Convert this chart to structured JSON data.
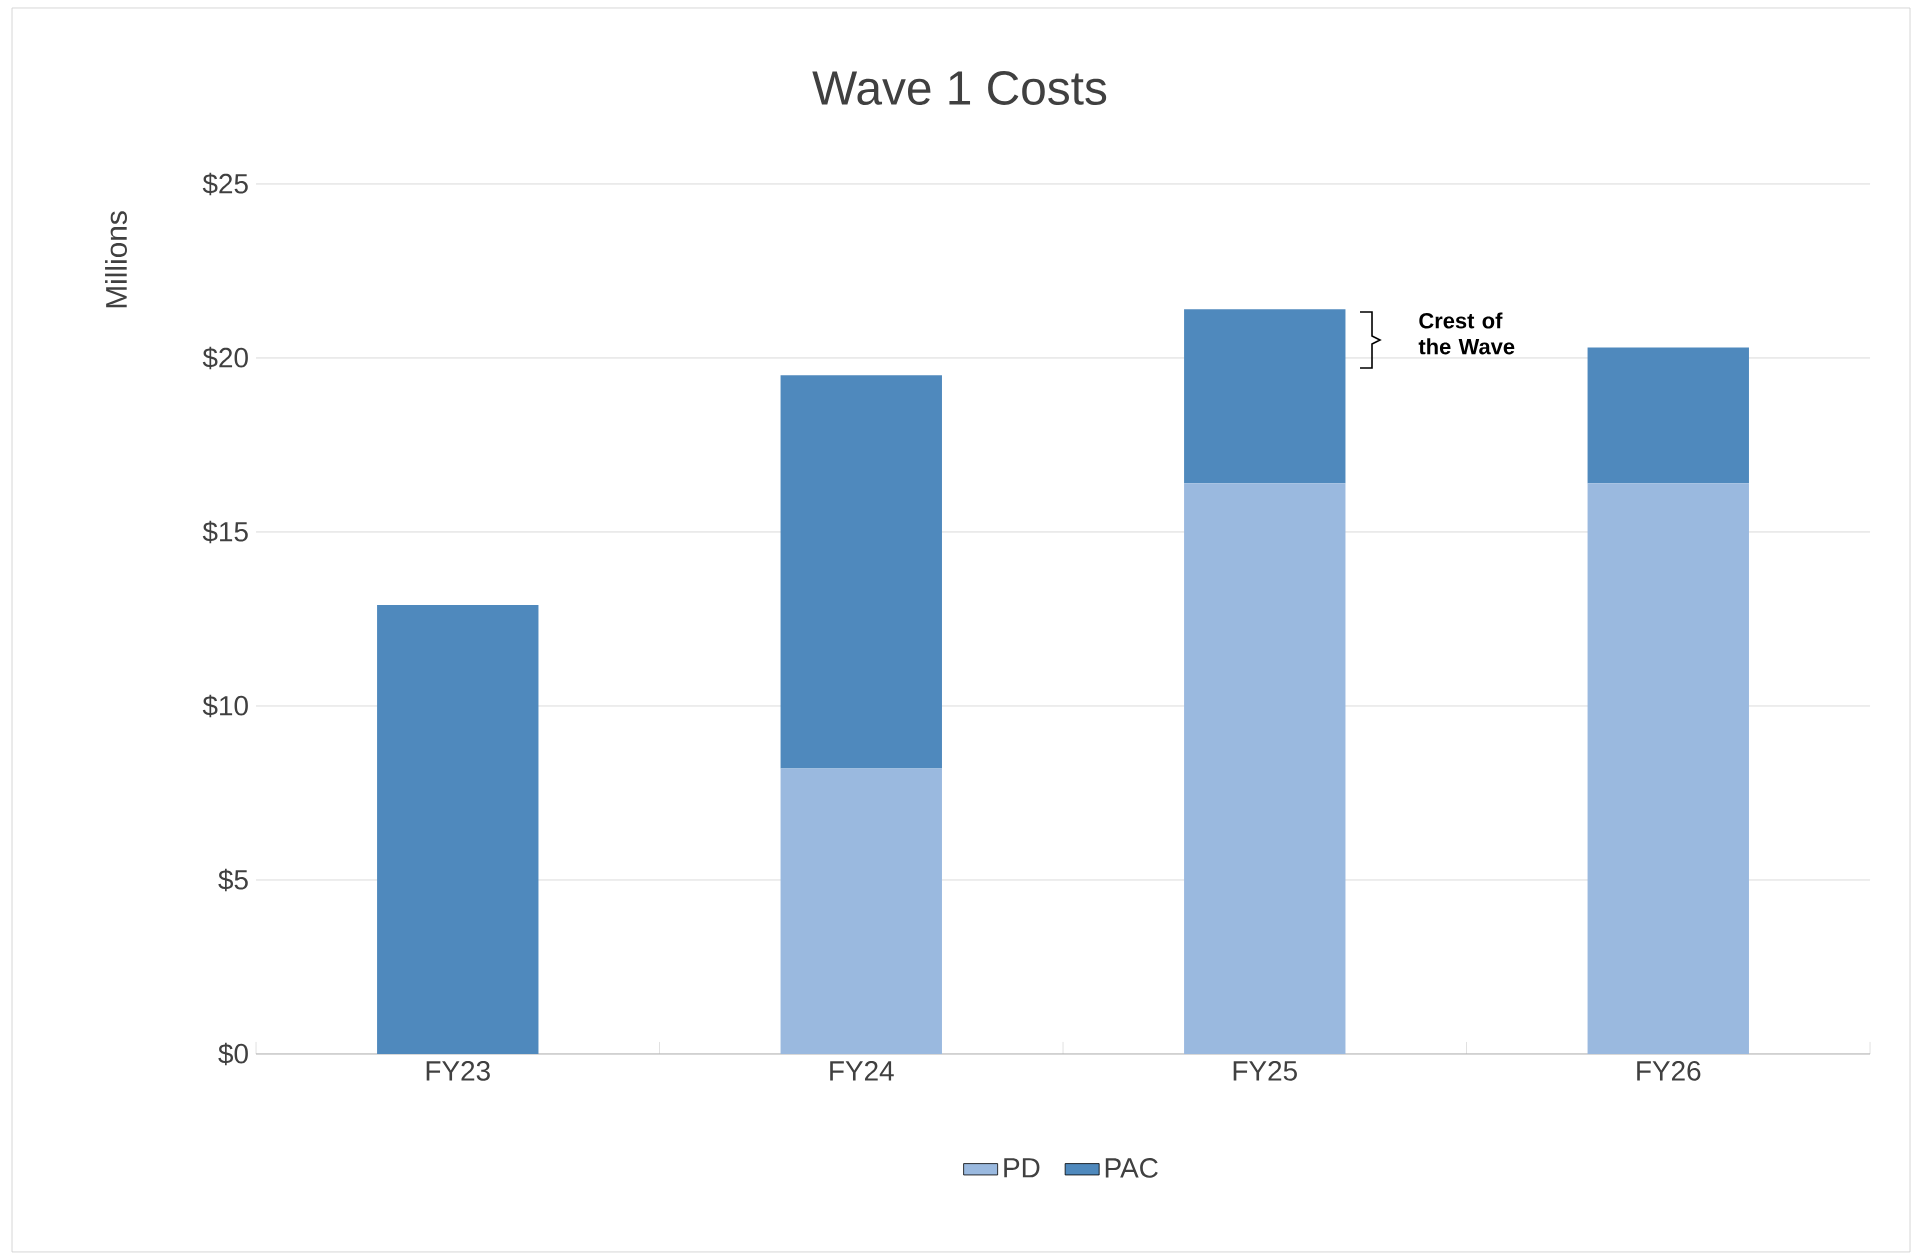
{
  "chart_data": {
    "type": "bar",
    "title": "Wave 1 Costs",
    "ylabel": "Millions",
    "categories": [
      "FY23",
      "FY24",
      "FY25",
      "FY26"
    ],
    "stacked": true,
    "series": [
      {
        "name": "PD",
        "color": "#9ab9df",
        "values": [
          0,
          8.2,
          16.4,
          16.4
        ]
      },
      {
        "name": "PAC",
        "color": "#4f89bd",
        "values": [
          12.9,
          11.3,
          5.0,
          3.9
        ]
      }
    ],
    "ylim": [
      0,
      25
    ],
    "yticks": [
      {
        "value": 0,
        "label": "$0"
      },
      {
        "value": 5,
        "label": "$5"
      },
      {
        "value": 10,
        "label": "$10"
      },
      {
        "value": 15,
        "label": "$15"
      },
      {
        "value": 20,
        "label": "$20"
      },
      {
        "value": 25,
        "label": "$25"
      }
    ],
    "grid": "y",
    "legend": "bottom",
    "annotations": [
      "Crest of the Wave"
    ]
  }
}
